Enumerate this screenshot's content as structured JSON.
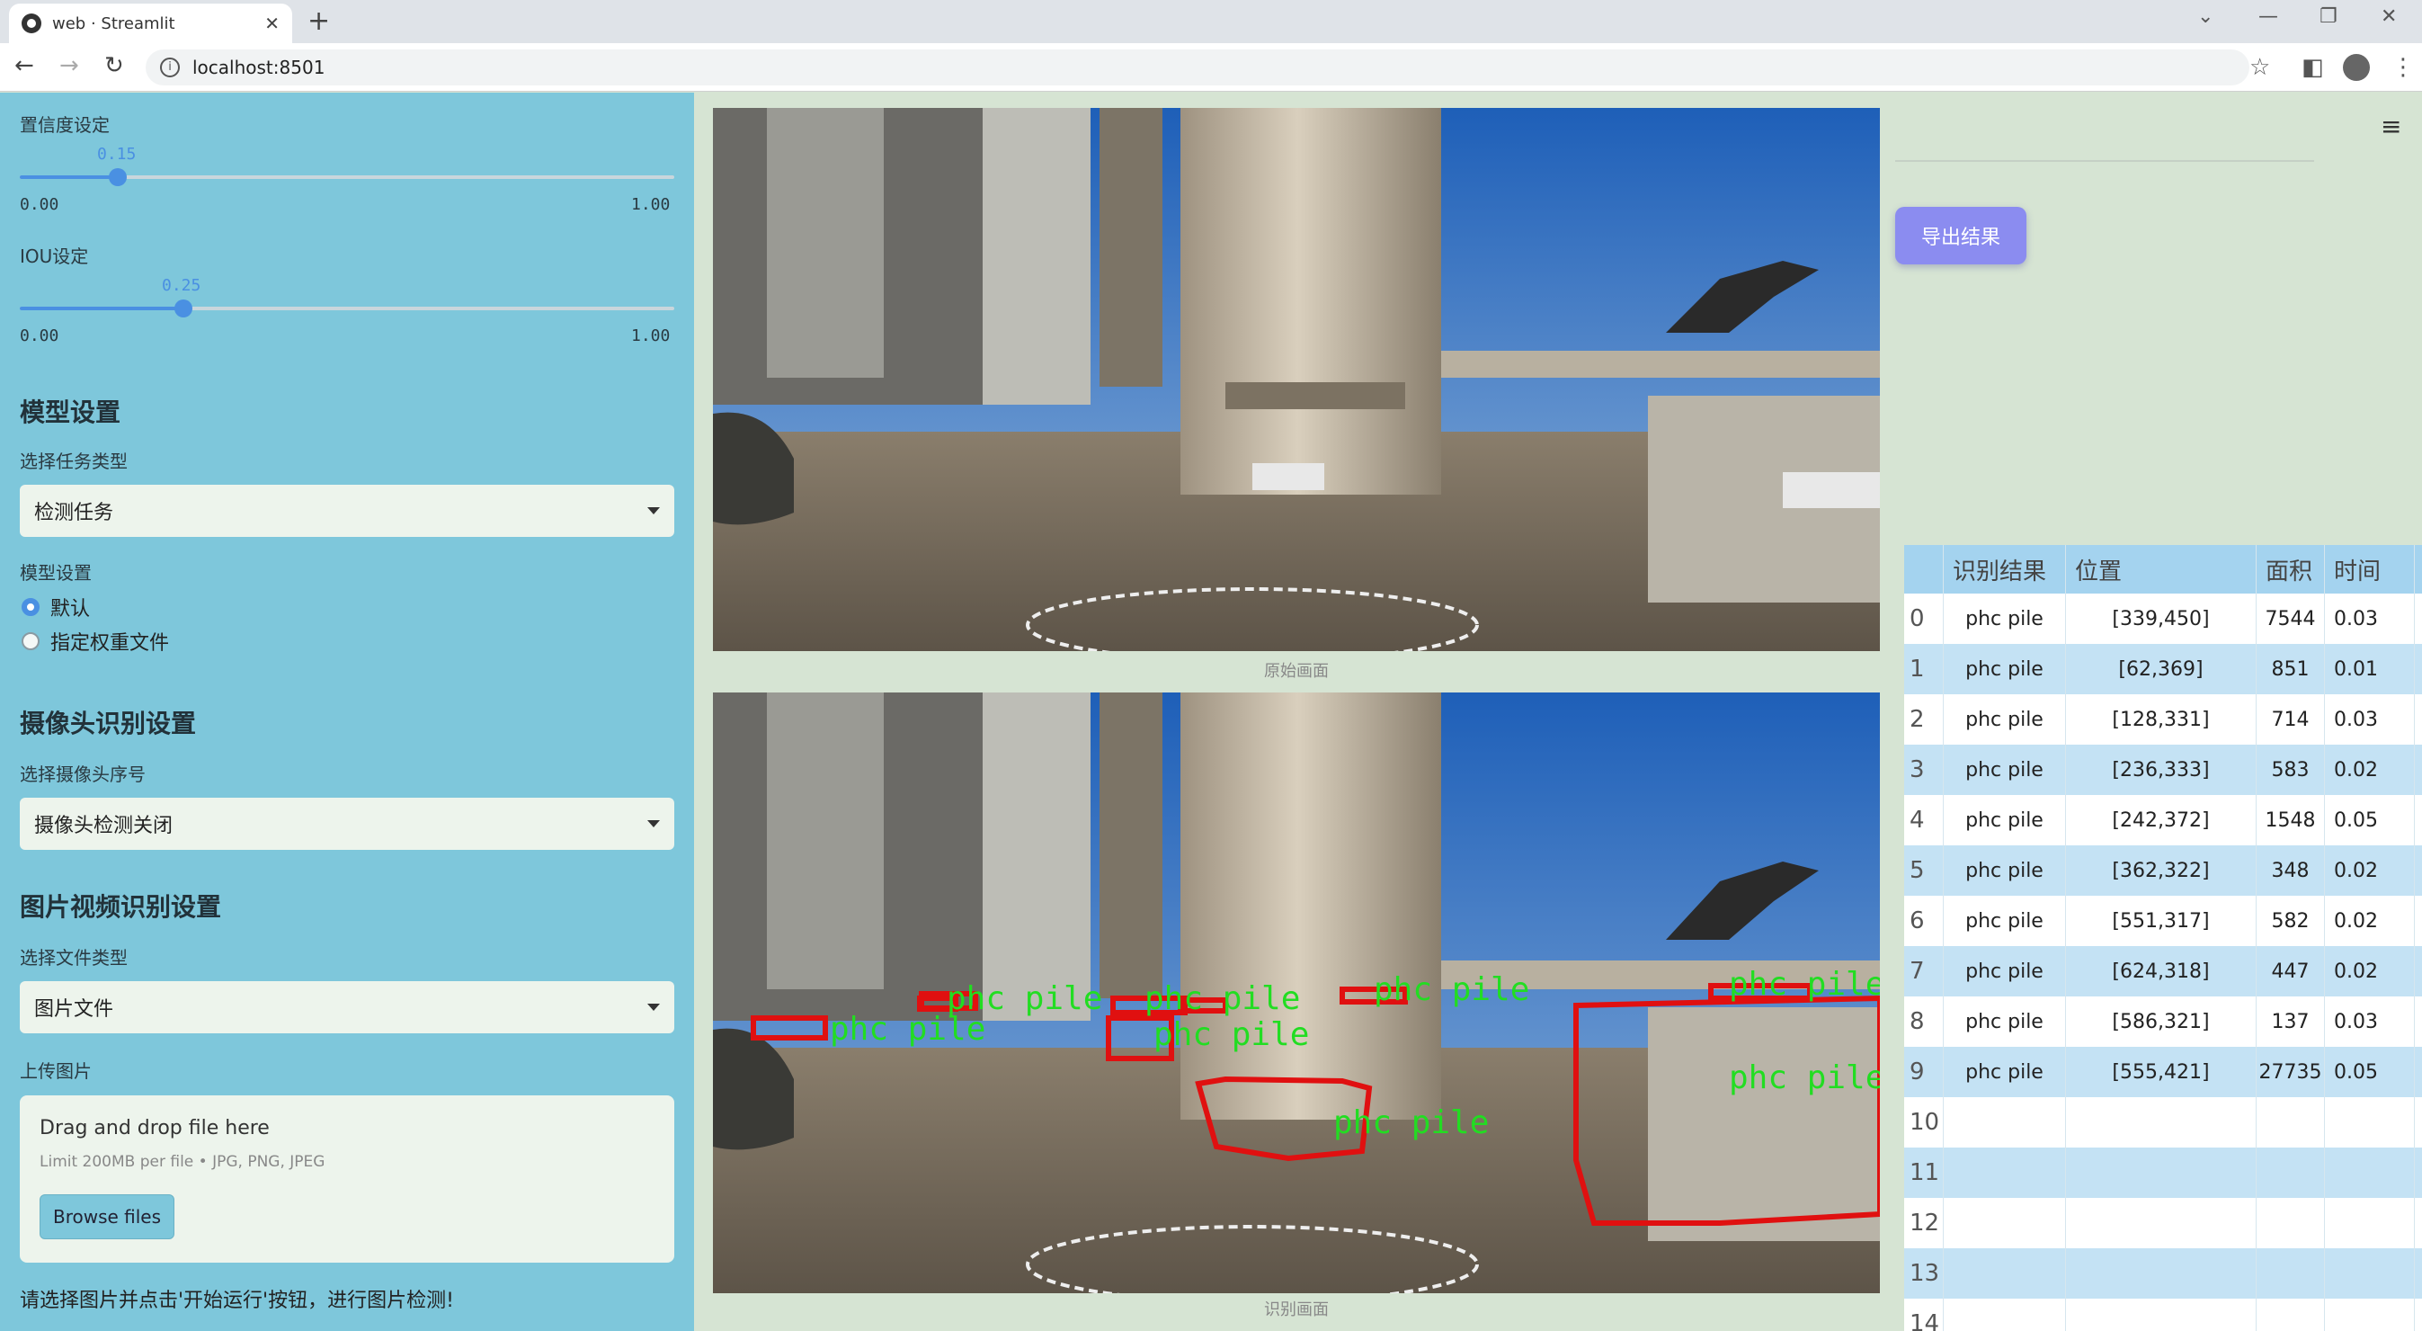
{
  "browser": {
    "tab_title": "web · Streamlit",
    "url": "localhost:8501"
  },
  "sidebar": {
    "conf": {
      "label": "置信度设定",
      "value": "0.15",
      "value_num": 0.15,
      "min": "0.00",
      "max": "1.00"
    },
    "iou": {
      "label": "IOU设定",
      "value": "0.25",
      "value_num": 0.25,
      "min": "0.00",
      "max": "1.00"
    },
    "model_section": "模型设置",
    "task_label": "选择任务类型",
    "task_value": "检测任务",
    "model_label": "模型设置",
    "model_options": [
      "默认",
      "指定权重文件"
    ],
    "camera_section": "摄像头识别设置",
    "camera_label": "选择摄像头序号",
    "camera_value": "摄像头检测关闭",
    "media_section": "图片视频识别设置",
    "filetype_label": "选择文件类型",
    "filetype_value": "图片文件",
    "upload_label": "上传图片",
    "dropzone_title": "Drag and drop file here",
    "dropzone_limit": "Limit 200MB per file • JPG, PNG, JPEG",
    "browse_label": "Browse files",
    "hint": "请选择图片并点击'开始运行'按钮，进行图片检测!"
  },
  "main": {
    "caption_original": "原始画面",
    "caption_result": "识别画面",
    "export_label": "导出结果",
    "detection_label": "phc pile",
    "box_color": "#e01010",
    "label_color": "#22dd22"
  },
  "table": {
    "headers": [
      "识别结果",
      "位置",
      "面积",
      "时间"
    ],
    "rows": [
      {
        "idx": "0",
        "result": "phc pile",
        "pos": "[339,450]",
        "area": "7544",
        "time": "0.03"
      },
      {
        "idx": "1",
        "result": "phc pile",
        "pos": "[62,369]",
        "area": "851",
        "time": "0.01"
      },
      {
        "idx": "2",
        "result": "phc pile",
        "pos": "[128,331]",
        "area": "714",
        "time": "0.03"
      },
      {
        "idx": "3",
        "result": "phc pile",
        "pos": "[236,333]",
        "area": "583",
        "time": "0.02"
      },
      {
        "idx": "4",
        "result": "phc pile",
        "pos": "[242,372]",
        "area": "1548",
        "time": "0.05"
      },
      {
        "idx": "5",
        "result": "phc pile",
        "pos": "[362,322]",
        "area": "348",
        "time": "0.02"
      },
      {
        "idx": "6",
        "result": "phc pile",
        "pos": "[551,317]",
        "area": "582",
        "time": "0.02"
      },
      {
        "idx": "7",
        "result": "phc pile",
        "pos": "[624,318]",
        "area": "447",
        "time": "0.02"
      },
      {
        "idx": "8",
        "result": "phc pile",
        "pos": "[586,321]",
        "area": "137",
        "time": "0.03"
      },
      {
        "idx": "9",
        "result": "phc pile",
        "pos": "[555,421]",
        "area": "27735",
        "time": "0.05"
      },
      {
        "idx": "10",
        "result": "",
        "pos": "",
        "area": "",
        "time": ""
      },
      {
        "idx": "11",
        "result": "",
        "pos": "",
        "area": "",
        "time": ""
      },
      {
        "idx": "12",
        "result": "",
        "pos": "",
        "area": "",
        "time": ""
      },
      {
        "idx": "13",
        "result": "",
        "pos": "",
        "area": "",
        "time": ""
      },
      {
        "idx": "14",
        "result": "",
        "pos": "",
        "area": "",
        "time": ""
      }
    ]
  }
}
